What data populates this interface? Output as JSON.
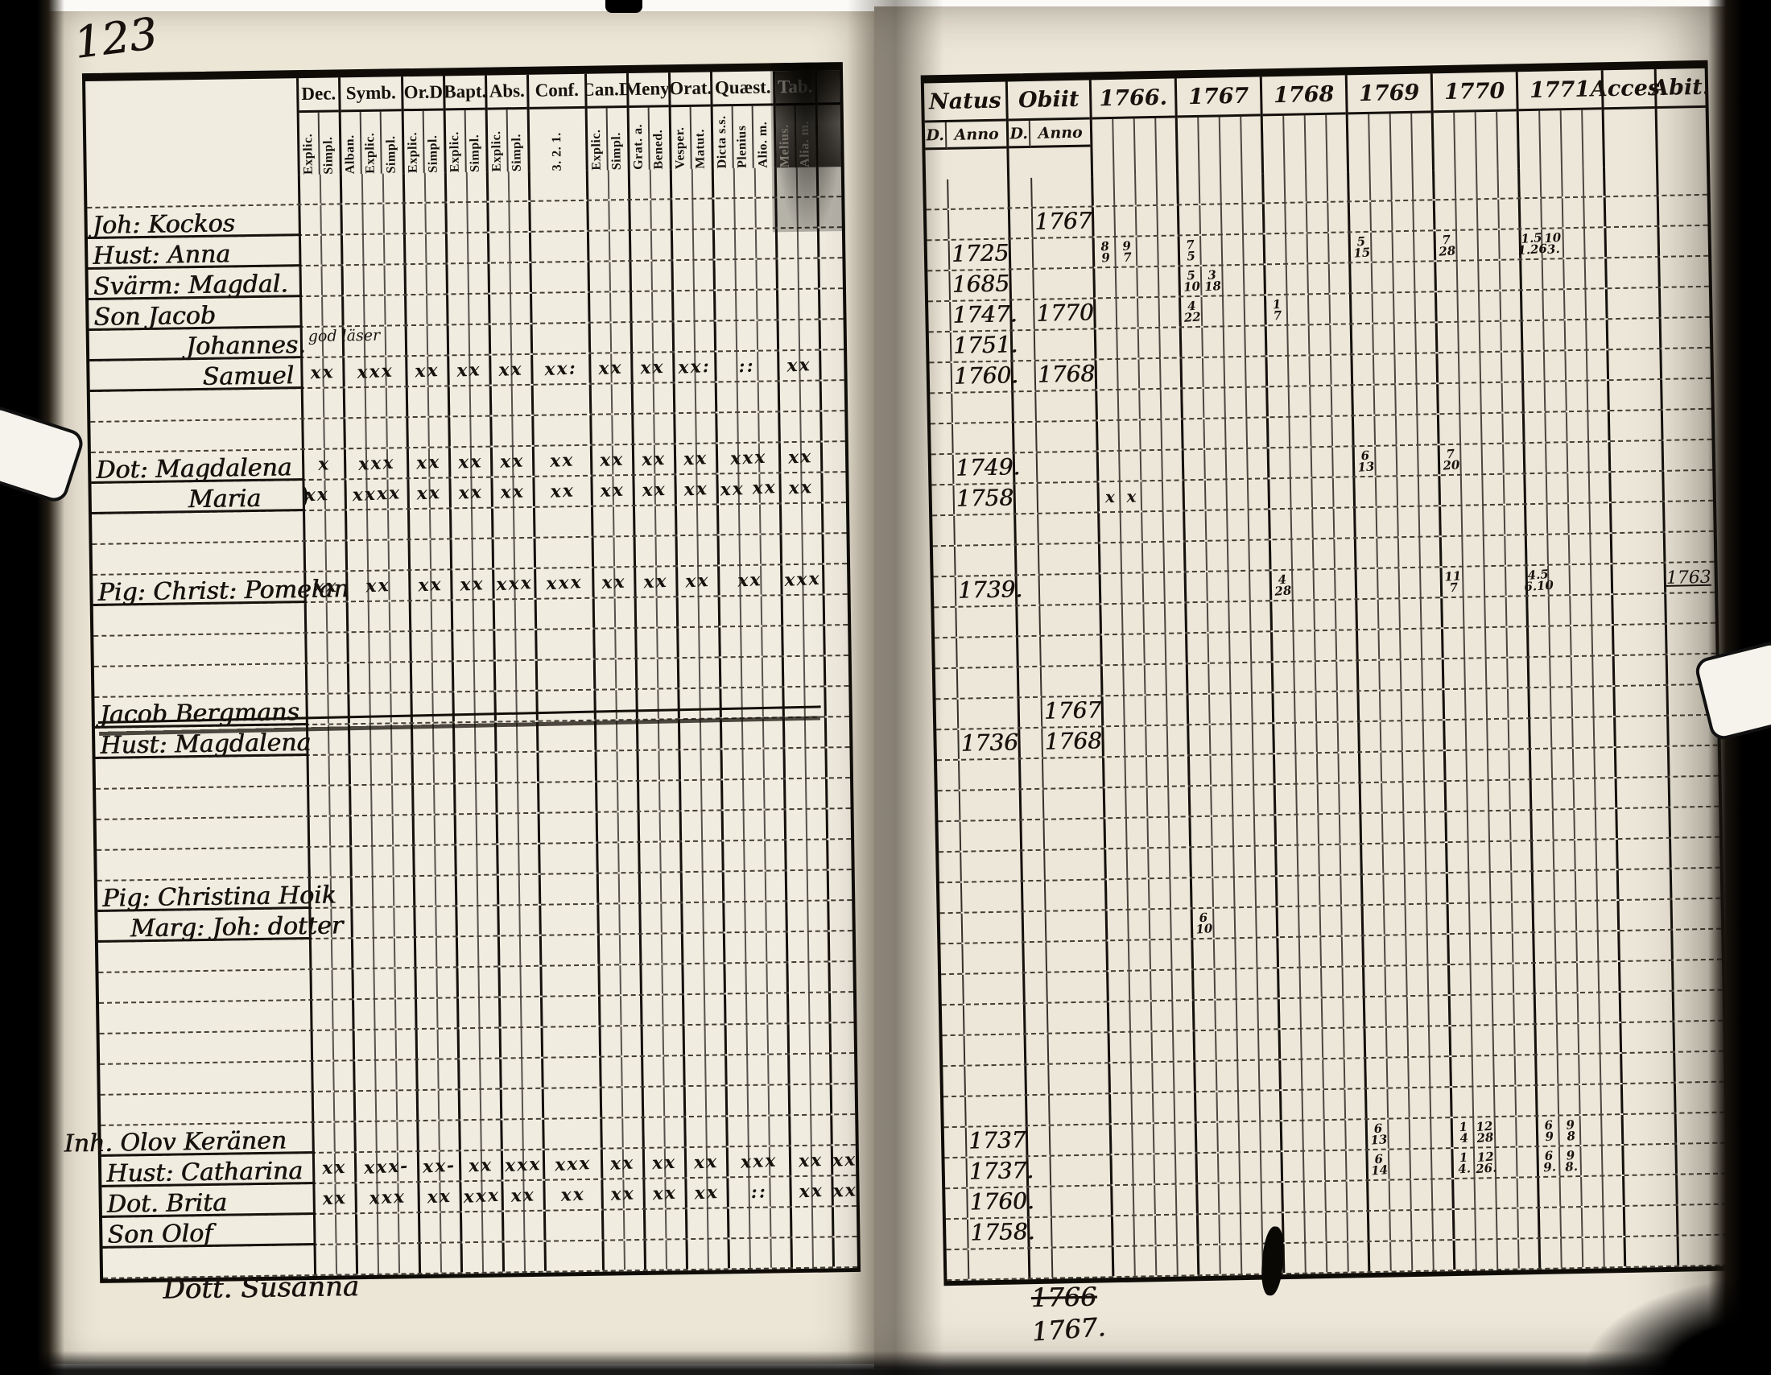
{
  "page": {
    "number": "123"
  },
  "left_table": {
    "groups": [
      {
        "label": "Dec.",
        "subs": [
          "Explic.",
          "Simpl."
        ]
      },
      {
        "label": "Symb.",
        "subs": [
          "Alban.",
          "Explic.",
          "Simpl."
        ]
      },
      {
        "label": "Or.D",
        "subs": [
          "Explic.",
          "Simpl."
        ]
      },
      {
        "label": "Bapt.",
        "subs": [
          "Explic.",
          "Simpl."
        ]
      },
      {
        "label": "Abs.",
        "subs": [
          "Explic.",
          "Simpl."
        ]
      },
      {
        "label": "Conf.",
        "subs": [
          "3. 2. 1."
        ],
        "w": 72
      },
      {
        "label": "Can.D",
        "subs": [
          "Explic.",
          "Simpl."
        ]
      },
      {
        "label": "Meny.",
        "subs": [
          "Grat. a.",
          "Bened."
        ]
      },
      {
        "label": "Orat.",
        "subs": [
          "Vesper.",
          "Matut."
        ]
      },
      {
        "label": "Quæst.",
        "subs": [
          "Dicta s.s.",
          "Plenius",
          "Alio. m."
        ]
      },
      {
        "label": "Tab.",
        "subs": [
          "Melius.",
          "Alia. m."
        ],
        "smudged": true
      },
      {
        "label": "",
        "subs": [
          " "
        ],
        "w": 28,
        "smudged": true
      }
    ],
    "row_count": 36,
    "rows": [
      {
        "i": 1,
        "name": "Joh: Kockos"
      },
      {
        "i": 2,
        "name": "Hust: Anna"
      },
      {
        "i": 3,
        "name": "Svärm: Magdal."
      },
      {
        "i": 4,
        "name": "Son Jacob"
      },
      {
        "i": 5,
        "name": "Johannes.",
        "indent": 120,
        "note": "god läser"
      },
      {
        "i": 6,
        "name": "Samuel",
        "indent": 140,
        "marks": [
          "xx",
          "xxx",
          "xx",
          "xx",
          "xx",
          "xx:",
          "xx",
          "xx",
          "xx:",
          "::",
          "xx",
          ""
        ]
      },
      {
        "i": 9,
        "name": "Dot: Magdalena",
        "marks": [
          "x",
          "xxx",
          "xx",
          "xx",
          "xx",
          "xx",
          "xx",
          "xx",
          "xx",
          "xxx",
          "xx",
          ""
        ]
      },
      {
        "i": 10,
        "name": "Maria",
        "indent": 120,
        "blot": true,
        "marks": [
          "xx",
          "xxxx",
          "xx",
          "xx",
          "xx",
          "xx",
          "xx",
          "xx",
          "xx",
          "xx xx",
          "xx",
          ""
        ]
      },
      {
        "i": 13,
        "name": "Pig: Christ: Pomelan",
        "marks": [
          "xx",
          "xx",
          "xx",
          "xx",
          "xxx",
          "xxx",
          "xx",
          "xx",
          "xx",
          "xx",
          "xxx",
          ""
        ]
      },
      {
        "i": 17,
        "name": "Jacob Bergmans",
        "struck": true
      },
      {
        "i": 18,
        "name": "Hust: Magdalena"
      },
      {
        "i": 23,
        "name": "Pig: Christina Hoik"
      },
      {
        "i": 24,
        "name": "Marg: Joh: dotter",
        "indent": 40
      },
      {
        "i": 31,
        "name": "Inh. Olov Keränen",
        "hang": true
      },
      {
        "i": 32,
        "name": "Hust: Catharina",
        "marks": [
          "xx",
          "xxx-",
          "xx-",
          "xx",
          "xxx",
          "xxx",
          "xx",
          "xx",
          "xx",
          "xxx",
          "xx",
          "xx"
        ]
      },
      {
        "i": 33,
        "name": "Dot. Brita",
        "marks": [
          "xx",
          "xxx",
          "xx",
          "xxx",
          "xx",
          "xx",
          "xx",
          "xx",
          "xx",
          "::",
          "xx",
          "xx"
        ]
      },
      {
        "i": 34,
        "name": "Son Olof"
      }
    ],
    "overflow_name": "Dott. Susanna"
  },
  "right_table": {
    "header": {
      "natus": "Natus",
      "obiit": "Obiit",
      "d": "D.",
      "anno": "Anno",
      "years": [
        "1766.",
        "1767",
        "1768",
        "1769",
        "1770",
        "1771"
      ],
      "acces": "Acces.",
      "abit": "Abit."
    },
    "row_count": 36,
    "rows": [
      {
        "i": 1,
        "obiit": "1767"
      },
      {
        "i": 2,
        "natus": "1725",
        "y66": [
          "8/9",
          "9/7"
        ],
        "y67": [
          "7/5"
        ],
        "y69": [
          "5/15"
        ],
        "y70": [
          "7/28"
        ],
        "y71": [
          "1.5/1.26",
          "10/3."
        ]
      },
      {
        "i": 3,
        "natus": "1685",
        "y67": [
          "5/10",
          "3/18"
        ]
      },
      {
        "i": 4,
        "natus": "1747.",
        "obiit": "1770",
        "y67": [
          "4/22"
        ],
        "y68": [
          "1/7"
        ]
      },
      {
        "i": 5,
        "natus": "1751."
      },
      {
        "i": 6,
        "natus": "1760.",
        "obiit": "1768"
      },
      {
        "i": 9,
        "natus": "1749.",
        "y69": [
          "6/13"
        ],
        "y70": [
          "7/20"
        ]
      },
      {
        "i": 10,
        "natus": "1758",
        "y66": [
          "x",
          "x"
        ]
      },
      {
        "i": 13,
        "natus": "1739.",
        "y68": [
          "4/28"
        ],
        "y70": [
          "11/7"
        ],
        "y71": [
          "4.5/6.10"
        ],
        "abit": "1763"
      },
      {
        "i": 17,
        "obiit": "1767"
      },
      {
        "i": 18,
        "natus": "1736",
        "obiit": "1768"
      },
      {
        "i": 24,
        "y67": [
          "6/10"
        ]
      },
      {
        "i": 31,
        "natus": "1737",
        "y69": [
          "6/13"
        ],
        "y70": [
          "1/4",
          "12/28"
        ],
        "y71": [
          "6/9",
          "9/8"
        ]
      },
      {
        "i": 32,
        "natus": "1737.",
        "y69": [
          "6/14"
        ],
        "y70": [
          "1/4.",
          "12/26."
        ],
        "y71": [
          "6/9.",
          "9/8."
        ]
      },
      {
        "i": 33,
        "natus": "1760."
      },
      {
        "i": 34,
        "natus": "1758."
      }
    ],
    "footer_note_1": "1766",
    "footer_note_2": "1767."
  }
}
